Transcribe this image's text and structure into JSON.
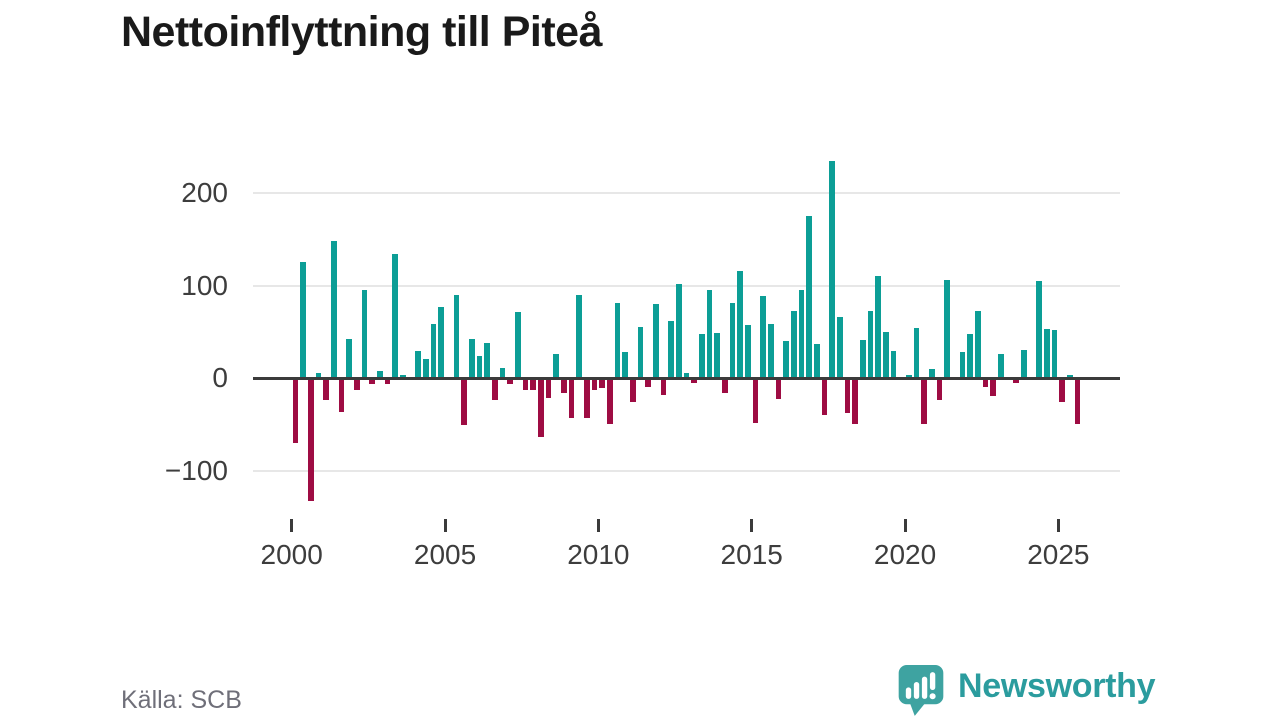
{
  "title": "Nettoinflyttning till Piteå",
  "source": "Källa: SCB",
  "brand": {
    "name": "Newsworthy",
    "icon": "newsworthy-speech-bubble-barchart-icon",
    "icon_color": "#3EA3A1",
    "text_color": "#2B9C9E"
  },
  "colors": {
    "positive_bar": "#0C9E96",
    "negative_bar": "#9E0C43",
    "gridline": "#E7E7E7",
    "zero_axis": "#3B3B3B",
    "axis_text": "#3D3D3D",
    "title_text": "#1A1A1A",
    "source_text": "#6F6F79"
  },
  "chart_data": {
    "type": "bar",
    "title": "Nettoinflyttning till Piteå",
    "frequency": "quarterly",
    "start": {
      "year": 2000,
      "quarter": 1
    },
    "end": {
      "year": 2025,
      "quarter": 3
    },
    "grid": true,
    "legend": false,
    "ylim": [
      -150,
      250
    ],
    "y_axis": {
      "ticks": [
        200,
        100,
        0,
        -100
      ],
      "tick_labels": [
        "200",
        "100",
        "0",
        "−100"
      ]
    },
    "x_axis": {
      "ticks": [
        2000,
        2005,
        2010,
        2015,
        2020,
        2025
      ],
      "tick_labels": [
        "2000",
        "2005",
        "2010",
        "2015",
        "2020",
        "2025"
      ]
    },
    "series": [
      {
        "name": "Nettoinflyttning till Piteå",
        "values_by_year": [
          {
            "year": 2000,
            "values": [
              -70,
              126,
              -133,
              6
            ]
          },
          {
            "year": 2001,
            "values": [
              -23,
              148,
              -36,
              43
            ]
          },
          {
            "year": 2002,
            "values": [
              -13,
              96,
              -6,
              8
            ]
          },
          {
            "year": 2003,
            "values": [
              -6,
              134,
              4,
              0
            ]
          },
          {
            "year": 2004,
            "values": [
              30,
              21,
              59,
              77
            ]
          },
          {
            "year": 2005,
            "values": [
              0,
              90,
              -51,
              42
            ]
          },
          {
            "year": 2006,
            "values": [
              24,
              38,
              -23,
              11
            ]
          },
          {
            "year": 2007,
            "values": [
              -6,
              72,
              -13,
              -13
            ]
          },
          {
            "year": 2008,
            "values": [
              -63,
              -21,
              26,
              -16
            ]
          },
          {
            "year": 2009,
            "values": [
              -43,
              90,
              -43,
              -13
            ]
          },
          {
            "year": 2010,
            "values": [
              -11,
              -49,
              81,
              28
            ]
          },
          {
            "year": 2011,
            "values": [
              -26,
              56,
              -9,
              80
            ]
          },
          {
            "year": 2012,
            "values": [
              -18,
              62,
              102,
              6
            ]
          },
          {
            "year": 2013,
            "values": [
              -5,
              48,
              95,
              49
            ]
          },
          {
            "year": 2014,
            "values": [
              -16,
              81,
              116,
              58
            ]
          },
          {
            "year": 2015,
            "values": [
              -48,
              89,
              59,
              -22
            ]
          },
          {
            "year": 2016,
            "values": [
              40,
              73,
              95,
              176
            ]
          },
          {
            "year": 2017,
            "values": [
              37,
              -40,
              235,
              66
            ]
          },
          {
            "year": 2018,
            "values": [
              -38,
              -49,
              41,
              73
            ]
          },
          {
            "year": 2019,
            "values": [
              111,
              50,
              30,
              0
            ]
          },
          {
            "year": 2020,
            "values": [
              4,
              54,
              -49,
              10
            ]
          },
          {
            "year": 2021,
            "values": [
              -23,
              106,
              0,
              28
            ]
          },
          {
            "year": 2022,
            "values": [
              48,
              73,
              -9,
              -19
            ]
          },
          {
            "year": 2023,
            "values": [
              26,
              0,
              -5,
              31
            ]
          },
          {
            "year": 2024,
            "values": [
              0,
              105,
              53,
              52
            ]
          },
          {
            "year": 2025,
            "values": [
              -26,
              4,
              -49
            ]
          }
        ]
      }
    ]
  }
}
